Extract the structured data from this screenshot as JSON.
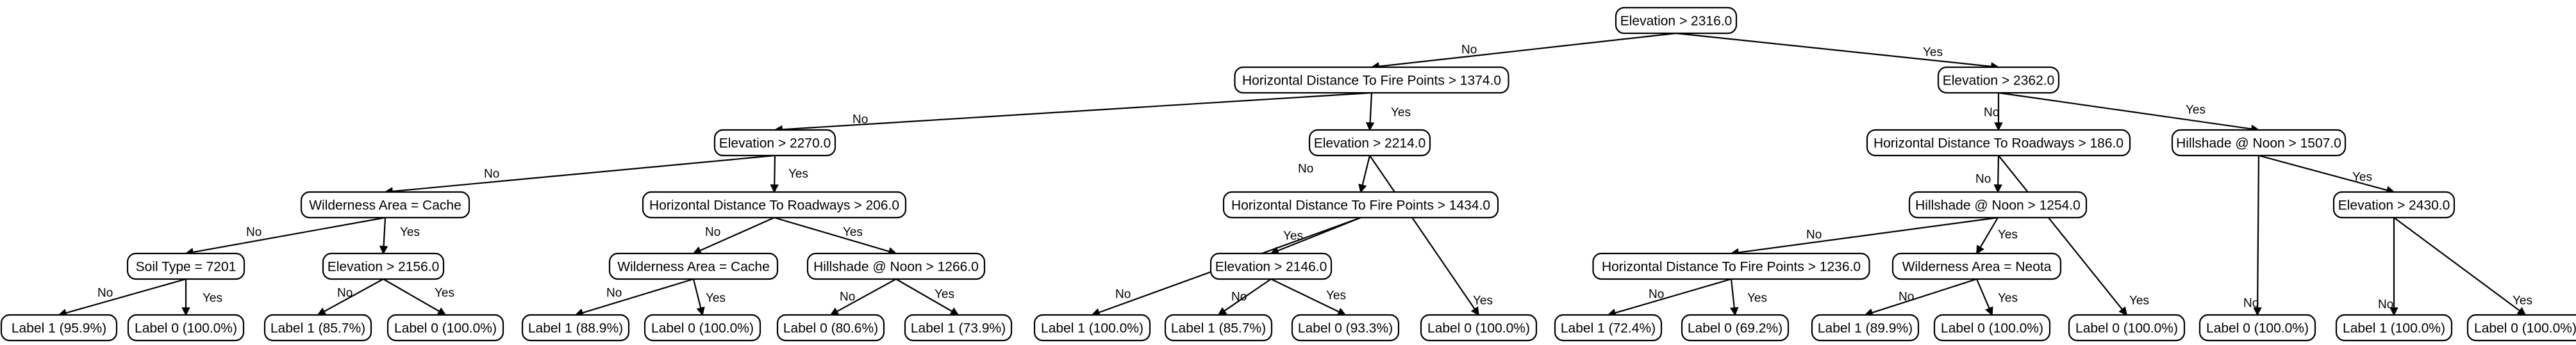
{
  "tree": {
    "nodes": [
      {
        "id": "n0",
        "label": "Elevation > 2316.0"
      },
      {
        "id": "n1",
        "label": "Horizontal Distance To Fire Points > 1374.0"
      },
      {
        "id": "n2",
        "label": "Elevation > 2362.0"
      },
      {
        "id": "n3",
        "label": "Elevation > 2270.0"
      },
      {
        "id": "n4",
        "label": "Elevation > 2214.0"
      },
      {
        "id": "n5",
        "label": "Horizontal Distance To Roadways > 186.0"
      },
      {
        "id": "n6",
        "label": "Hillshade @ Noon > 1507.0"
      },
      {
        "id": "n7",
        "label": "Wilderness Area = Cache"
      },
      {
        "id": "n8",
        "label": "Horizontal Distance To Roadways > 206.0"
      },
      {
        "id": "n9",
        "label": "Horizontal Distance To Fire Points > 1434.0"
      },
      {
        "id": "n10",
        "label": "Hillshade @ Noon > 1254.0"
      },
      {
        "id": "n11",
        "label": "Elevation > 2430.0"
      },
      {
        "id": "n12",
        "label": "Soil Type = 7201"
      },
      {
        "id": "n13",
        "label": "Elevation > 2156.0"
      },
      {
        "id": "n14",
        "label": "Wilderness Area = Cache"
      },
      {
        "id": "n15",
        "label": "Hillshade @ Noon > 1266.0"
      },
      {
        "id": "n16",
        "label": "Elevation > 2146.0"
      },
      {
        "id": "n17",
        "label": "Horizontal Distance To Fire Points > 1236.0"
      },
      {
        "id": "n18",
        "label": "Wilderness Area = Neota"
      },
      {
        "id": "l0",
        "label": "Label 1 (95.9%)"
      },
      {
        "id": "l1",
        "label": "Label 0 (100.0%)"
      },
      {
        "id": "l2",
        "label": "Label 1 (85.7%)"
      },
      {
        "id": "l3",
        "label": "Label 0 (100.0%)"
      },
      {
        "id": "l4",
        "label": "Label 1 (88.9%)"
      },
      {
        "id": "l5",
        "label": "Label 0 (100.0%)"
      },
      {
        "id": "l6",
        "label": "Label 0 (80.6%)"
      },
      {
        "id": "l7",
        "label": "Label 1 (73.9%)"
      },
      {
        "id": "l8",
        "label": "Label 1 (100.0%)"
      },
      {
        "id": "l9",
        "label": "Label 1 (85.7%)"
      },
      {
        "id": "l10",
        "label": "Label 0 (93.3%)"
      },
      {
        "id": "l11",
        "label": "Label 0 (100.0%)"
      },
      {
        "id": "l12",
        "label": "Label 1 (72.4%)"
      },
      {
        "id": "l13",
        "label": "Label 0 (69.2%)"
      },
      {
        "id": "l14",
        "label": "Label 1 (89.9%)"
      },
      {
        "id": "l15",
        "label": "Label 0 (100.0%)"
      },
      {
        "id": "l16",
        "label": "Label 0 (100.0%)"
      },
      {
        "id": "l17",
        "label": "Label 0 (100.0%)"
      },
      {
        "id": "l18",
        "label": "Label 1 (100.0%)"
      },
      {
        "id": "l19",
        "label": "Label 0 (100.0%)"
      }
    ],
    "edges": [
      {
        "from": "n0",
        "to": "n1",
        "label": "No"
      },
      {
        "from": "n0",
        "to": "n2",
        "label": "Yes"
      },
      {
        "from": "n1",
        "to": "n3",
        "label": "No"
      },
      {
        "from": "n1",
        "to": "n4",
        "label": "Yes"
      },
      {
        "from": "n2",
        "to": "n5",
        "label": "No"
      },
      {
        "from": "n2",
        "to": "n6",
        "label": "Yes"
      },
      {
        "from": "n3",
        "to": "n7",
        "label": "No"
      },
      {
        "from": "n3",
        "to": "n8",
        "label": "Yes"
      },
      {
        "from": "n4",
        "to": "n9",
        "label": "No"
      },
      {
        "from": "n4",
        "to": "l11",
        "label": "Yes"
      },
      {
        "from": "n5",
        "to": "n10",
        "label": "No"
      },
      {
        "from": "n5",
        "to": "l16",
        "label": "Yes"
      },
      {
        "from": "n6",
        "to": "l17",
        "label": "No"
      },
      {
        "from": "n6",
        "to": "n11",
        "label": "Yes"
      },
      {
        "from": "n7",
        "to": "n12",
        "label": "No"
      },
      {
        "from": "n7",
        "to": "n13",
        "label": "Yes"
      },
      {
        "from": "n8",
        "to": "n14",
        "label": "No"
      },
      {
        "from": "n8",
        "to": "n15",
        "label": "Yes"
      },
      {
        "from": "n9",
        "to": "l8",
        "label": "No"
      },
      {
        "from": "n9",
        "to": "n16",
        "label": "Yes"
      },
      {
        "from": "n10",
        "to": "n17",
        "label": "No"
      },
      {
        "from": "n10",
        "to": "n18",
        "label": "Yes"
      },
      {
        "from": "n11",
        "to": "l18",
        "label": "No"
      },
      {
        "from": "n11",
        "to": "l19",
        "label": "Yes"
      },
      {
        "from": "n12",
        "to": "l0",
        "label": "No"
      },
      {
        "from": "n12",
        "to": "l1",
        "label": "Yes"
      },
      {
        "from": "n13",
        "to": "l2",
        "label": "No"
      },
      {
        "from": "n13",
        "to": "l3",
        "label": "Yes"
      },
      {
        "from": "n14",
        "to": "l4",
        "label": "No"
      },
      {
        "from": "n14",
        "to": "l5",
        "label": "Yes"
      },
      {
        "from": "n15",
        "to": "l6",
        "label": "No"
      },
      {
        "from": "n15",
        "to": "l7",
        "label": "Yes"
      },
      {
        "from": "n16",
        "to": "l9",
        "label": "No"
      },
      {
        "from": "n16",
        "to": "l10",
        "label": "Yes"
      },
      {
        "from": "n17",
        "to": "l12",
        "label": "No"
      },
      {
        "from": "n17",
        "to": "l13",
        "label": "Yes"
      },
      {
        "from": "n18",
        "to": "l14",
        "label": "No"
      },
      {
        "from": "n18",
        "to": "l15",
        "label": "Yes"
      }
    ]
  }
}
